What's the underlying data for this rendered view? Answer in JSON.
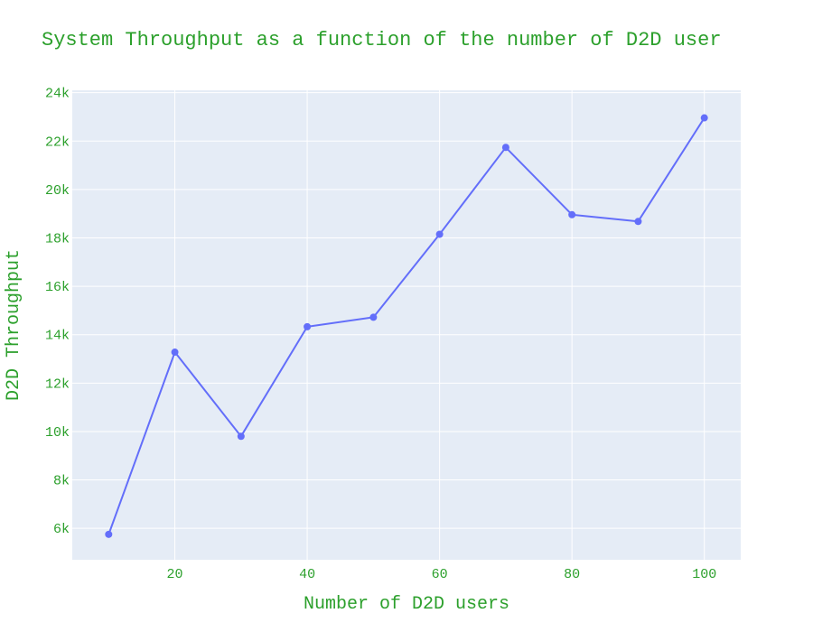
{
  "chart_data": {
    "type": "line",
    "title": "System Throughput as a function of the number of D2D user",
    "xlabel": "Number of D2D users",
    "ylabel": "D2D Throughput",
    "x": [
      10,
      20,
      30,
      40,
      50,
      60,
      70,
      80,
      90,
      100
    ],
    "series": [
      {
        "values": [
          5750,
          13280,
          9800,
          14330,
          14720,
          18150,
          21740,
          18960,
          18680,
          22960
        ]
      }
    ],
    "xlim": [
      4.5,
      105.5
    ],
    "ylim": [
      4700,
      24100
    ],
    "x_ticks": [
      20,
      40,
      60,
      80,
      100
    ],
    "x_tick_labels": [
      "20",
      "40",
      "60",
      "80",
      "100"
    ],
    "y_ticks": [
      6000,
      8000,
      10000,
      12000,
      14000,
      16000,
      18000,
      20000,
      22000,
      24000
    ],
    "y_tick_labels": [
      "6k",
      "8k",
      "10k",
      "12k",
      "14k",
      "16k",
      "18k",
      "20k",
      "22k",
      "24k"
    ],
    "grid": true,
    "legend": "none"
  },
  "colors": {
    "line": "#636efa",
    "plot_bg": "#e5ecf6",
    "grid": "#ffffff",
    "text": "#2ca02c"
  }
}
